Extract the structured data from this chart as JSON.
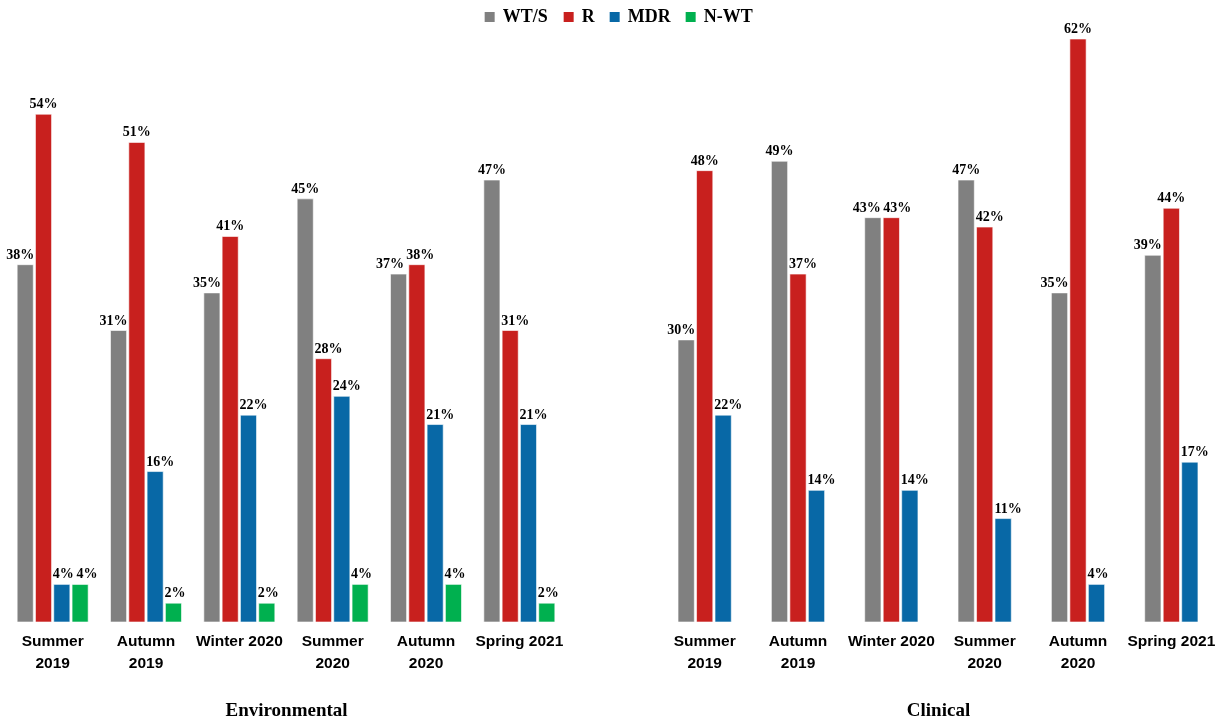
{
  "chart_data": [
    {
      "type": "bar",
      "xlabel": "Environmental",
      "legend": "top",
      "tick_labels": "x",
      "categories": [
        "Summer\n2019",
        "Autumn\n2019",
        "Winter 2020",
        "Summer\n2020",
        "Autumn\n2020",
        "Spring 2021"
      ],
      "series": [
        {
          "name": "WT/S",
          "color": "#808080",
          "values": [
            38,
            31,
            35,
            45,
            37,
            47
          ],
          "value_labels": [
            "38%",
            "31%",
            "35%",
            "45%",
            "37%",
            "47%"
          ]
        },
        {
          "name": "R",
          "color": "#c8201e",
          "values": [
            54,
            51,
            41,
            28,
            38,
            31
          ],
          "value_labels": [
            "54%",
            "51%",
            "41%",
            "28%",
            "38%",
            "31%"
          ]
        },
        {
          "name": "MDR",
          "color": "#0868a6",
          "values": [
            4,
            16,
            22,
            24,
            21,
            21
          ],
          "value_labels": [
            "4%",
            "16%",
            "22%",
            "24%",
            "21%",
            "21%"
          ]
        },
        {
          "name": "N-WT",
          "color": "#00b04f",
          "values": [
            4,
            2,
            2,
            4,
            4,
            2
          ],
          "value_labels": [
            "4%",
            "2%",
            "2%",
            "4%",
            "4%",
            "2%"
          ]
        }
      ]
    },
    {
      "type": "bar",
      "xlabel": "Clinical",
      "legend": "top",
      "tick_labels": "x",
      "categories": [
        "Summer\n2019",
        "Autumn\n2019",
        "Winter 2020",
        "Summer\n2020",
        "Autumn\n2020",
        "Spring 2021"
      ],
      "series": [
        {
          "name": "WT/S",
          "color": "#808080",
          "values": [
            30,
            49,
            43,
            47,
            35,
            39
          ],
          "value_labels": [
            "30%",
            "49%",
            "43%",
            "47%",
            "35%",
            "39%"
          ]
        },
        {
          "name": "R",
          "color": "#c8201e",
          "values": [
            48,
            37,
            43,
            42,
            62,
            44
          ],
          "value_labels": [
            "48%",
            "37%",
            "43%",
            "42%",
            "62%",
            "44%"
          ]
        },
        {
          "name": "MDR",
          "color": "#0868a6",
          "values": [
            22,
            14,
            14,
            11,
            4,
            17
          ],
          "value_labels": [
            "22%",
            "14%",
            "14%",
            "11%",
            "4%",
            "17%"
          ]
        }
      ]
    }
  ]
}
